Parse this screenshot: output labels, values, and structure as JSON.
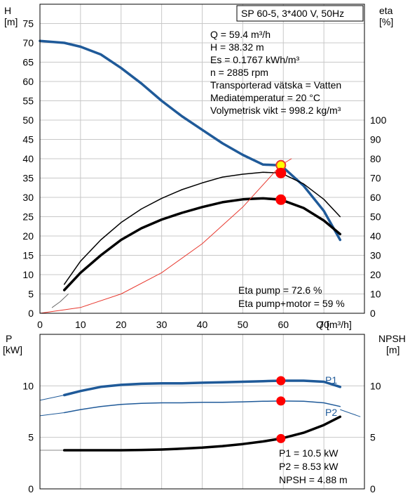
{
  "chart_data": [
    {
      "type": "line",
      "title": "SP 60-5, 3*400 V, 50Hz",
      "xlabel": "Q [m³/h]",
      "x_axis": {
        "label": "Q",
        "unit": "[m³/h]",
        "range": [
          0,
          80
        ],
        "ticks": [
          0,
          10,
          20,
          30,
          40,
          50,
          60,
          70
        ]
      },
      "y_left": {
        "label": "H",
        "unit": "[m]",
        "range": [
          0,
          80
        ],
        "ticks": [
          0,
          5,
          10,
          15,
          20,
          25,
          30,
          35,
          40,
          45,
          50,
          55,
          60,
          65,
          70,
          75
        ]
      },
      "y_right": {
        "label": "eta",
        "unit": "[%]",
        "range": [
          0,
          160
        ],
        "ticks": [
          0,
          10,
          20,
          30,
          40,
          50,
          60,
          70,
          80,
          90,
          100
        ]
      },
      "grid": true,
      "info_lines": [
        "Q = 59.4 m³/h",
        "H = 38.32 m",
        "Es = 0.1767 kWh/m³",
        "n = 2885 rpm",
        "Transporterad vätska = Vatten",
        "Mediatemperatur = 20 °C",
        "Volymetrisk vikt = 998.2 kg/m³"
      ],
      "eta_lines": [
        "Eta pump = 72.6 %",
        "Eta pump+motor = 59 %"
      ],
      "series": [
        {
          "axis": "left",
          "color": "#1f5a99",
          "width": 3.5,
          "x": [
            0,
            6,
            10,
            15,
            20,
            25,
            30,
            35,
            40,
            45,
            50,
            55,
            59.4,
            65,
            70,
            74
          ],
          "y": [
            70.5,
            70,
            69,
            67,
            63.5,
            59.5,
            55,
            51,
            47.5,
            44,
            41,
            38.5,
            38.3,
            33,
            26.5,
            19
          ]
        },
        {
          "axis": "right",
          "color": "#000000",
          "width": 3.5,
          "x": [
            6,
            10,
            15,
            20,
            25,
            30,
            35,
            40,
            45,
            50,
            55,
            59.4,
            65,
            70,
            74
          ],
          "y": [
            12,
            21,
            30,
            38,
            44,
            48.5,
            52,
            55,
            57.5,
            59,
            59.5,
            58.8,
            54.5,
            48,
            41
          ]
        },
        {
          "axis": "right",
          "color": "#000000",
          "width": 1.5,
          "x": [
            6,
            10,
            15,
            20,
            25,
            30,
            35,
            40,
            45,
            50,
            55,
            59.4,
            65,
            70,
            74
          ],
          "y": [
            15,
            27,
            38,
            47,
            54,
            59.5,
            64,
            67.5,
            70.5,
            72,
            73,
            72.6,
            67,
            59,
            50
          ]
        },
        {
          "axis": "right",
          "color": "#6b6b6b",
          "width": 1,
          "x": [
            3,
            5,
            7
          ],
          "y": [
            3,
            6,
            10
          ]
        },
        {
          "axis": "right",
          "color": "#e8392f",
          "width": 1,
          "x": [
            0,
            10,
            20,
            30,
            40,
            50,
            59.4,
            62
          ],
          "y": [
            0,
            3,
            10,
            21,
            36,
            55,
            76.7,
            80
          ]
        }
      ],
      "legacy_curve": {
        "axis": "left",
        "color": "#888888",
        "x": [
          0,
          6
        ],
        "y": [
          70.5,
          70
        ]
      },
      "duty_points": [
        {
          "axis": "left",
          "x": 59.4,
          "y": 38.32,
          "fill": "#ffff00",
          "ring": "#e8392f"
        },
        {
          "axis": "right",
          "x": 59.4,
          "y": 72.6,
          "fill": "#ff0000",
          "ring": "#ff0000"
        },
        {
          "axis": "right",
          "x": 59.4,
          "y": 58.8,
          "fill": "#ff0000",
          "ring": "#ff0000"
        }
      ]
    },
    {
      "type": "line",
      "x_axis": {
        "range": [
          0,
          80
        ]
      },
      "y_left": {
        "label": "P",
        "unit": "[kW]",
        "range": [
          0,
          15
        ],
        "ticks": [
          0,
          5,
          10
        ]
      },
      "y_right": {
        "label": "NPSH",
        "unit": "[m]",
        "range": [
          0,
          15
        ],
        "ticks": [
          0,
          5,
          10
        ]
      },
      "grid": true,
      "info_lines": [
        "P1 = 10.5 kW",
        "P2 = 8.53 kW",
        "NPSH = 4.88 m"
      ],
      "series": [
        {
          "name": "P1",
          "axis": "left",
          "color": "#1f5a99",
          "width": 3.5,
          "x": [
            6,
            10,
            15,
            20,
            25,
            30,
            35,
            40,
            45,
            50,
            55,
            59.4,
            65,
            70,
            74
          ],
          "y": [
            9.1,
            9.5,
            9.9,
            10.1,
            10.2,
            10.25,
            10.25,
            10.3,
            10.35,
            10.4,
            10.45,
            10.5,
            10.5,
            10.4,
            9.9
          ]
        },
        {
          "name": "P2",
          "axis": "left",
          "color": "#1f5a99",
          "width": 1.5,
          "x": [
            6,
            10,
            15,
            20,
            25,
            30,
            35,
            40,
            45,
            50,
            55,
            59.4,
            65,
            70,
            74
          ],
          "y": [
            7.4,
            7.7,
            8.0,
            8.2,
            8.3,
            8.35,
            8.35,
            8.4,
            8.4,
            8.45,
            8.5,
            8.53,
            8.5,
            8.35,
            8.0
          ]
        },
        {
          "axis": "right",
          "color": "#000000",
          "width": 3.5,
          "x": [
            6,
            10,
            15,
            20,
            25,
            30,
            35,
            40,
            45,
            50,
            55,
            59.4,
            65,
            70,
            74
          ],
          "y": [
            3.75,
            3.75,
            3.75,
            3.75,
            3.78,
            3.82,
            3.9,
            4.0,
            4.15,
            4.35,
            4.6,
            4.88,
            5.45,
            6.2,
            7.0
          ]
        }
      ],
      "stubs": [
        {
          "axis": "left",
          "color": "#1f5a99",
          "x": [
            0,
            6
          ],
          "y": [
            8.6,
            9.1
          ]
        },
        {
          "axis": "left",
          "color": "#1f5a99",
          "x": [
            0,
            6
          ],
          "y": [
            7.1,
            7.4
          ]
        },
        {
          "axis": "left",
          "color": "#888888",
          "x": [
            0,
            6
          ],
          "y": [
            3.75,
            3.75
          ]
        },
        {
          "axis": "left",
          "color": "#1f5a99",
          "x": [
            74,
            79
          ],
          "y": [
            7.7,
            7.0
          ]
        }
      ],
      "duty_points": [
        {
          "axis": "left",
          "x": 59.4,
          "y": 10.5,
          "fill": "#ff0000",
          "ring": "#ff0000"
        },
        {
          "axis": "left",
          "x": 59.4,
          "y": 8.53,
          "fill": "#ff0000",
          "ring": "#ff0000"
        },
        {
          "axis": "right",
          "x": 59.4,
          "y": 4.88,
          "fill": "#ff0000",
          "ring": "#ff0000"
        }
      ]
    }
  ]
}
